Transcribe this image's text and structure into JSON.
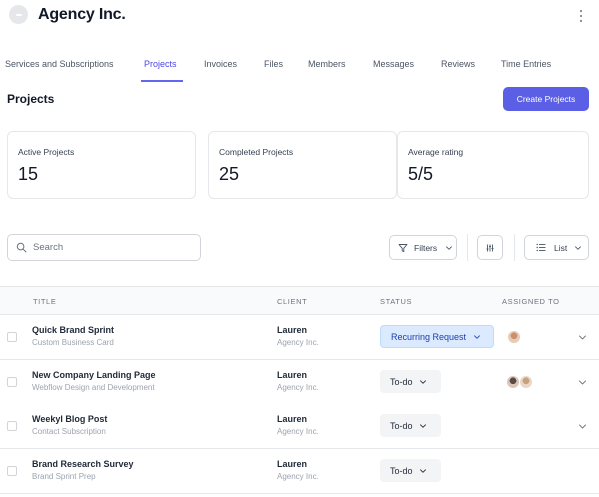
{
  "header": {
    "title": "Agency Inc.",
    "logo_icon": "agency-logo",
    "menu_icon": "kebab-menu-icon"
  },
  "tabs": [
    {
      "label": "Services and Subscriptions",
      "active": false
    },
    {
      "label": "Projects",
      "active": true
    },
    {
      "label": "Invoices",
      "active": false
    },
    {
      "label": "Files",
      "active": false
    },
    {
      "label": "Members",
      "active": false
    },
    {
      "label": "Messages",
      "active": false
    },
    {
      "label": "Reviews",
      "active": false
    },
    {
      "label": "Time Entries",
      "active": false
    }
  ],
  "section": {
    "title": "Projects",
    "create_label": "Create Projects"
  },
  "stats": [
    {
      "label": "Active Projects",
      "value": "15"
    },
    {
      "label": "Completed Projects",
      "value": "25"
    },
    {
      "label": "Average rating",
      "value": "5/5"
    }
  ],
  "toolbar": {
    "search_placeholder": "Search",
    "search_value": "",
    "filters_label": "Filters",
    "list_label": "List"
  },
  "table": {
    "columns": {
      "title": "TITLE",
      "client": "CLIENT",
      "status": "STATUS",
      "assigned": "ASSIGNED TO"
    },
    "rows": [
      {
        "title": "Quick Brand Sprint",
        "subtitle": "Custom Business Card",
        "client": "Lauren",
        "client_sub": "Agency Inc.",
        "status": "Recurring Request",
        "status_style": "recurring",
        "assignees": 1,
        "expandable": true
      },
      {
        "title": "New Company Landing Page",
        "subtitle": "Webflow Design and Development",
        "client": "Lauren",
        "client_sub": "Agency Inc.",
        "status": "To-do",
        "status_style": "todo",
        "assignees": 2,
        "expandable": true
      },
      {
        "title": "Weekyl Blog Post",
        "subtitle": "Contact Subscription",
        "client": "Lauren",
        "client_sub": "Agency Inc.",
        "status": "To-do",
        "status_style": "todo",
        "assignees": 0,
        "expandable": true
      },
      {
        "title": "Brand Research Survey",
        "subtitle": "Brand Sprint Prep",
        "client": "Lauren",
        "client_sub": "Agency Inc.",
        "status": "To-do",
        "status_style": "todo",
        "assignees": 0,
        "expandable": false
      }
    ]
  },
  "colors": {
    "accent": "#5b5fe6",
    "tab_active": "#4f46e5",
    "recurring_bg": "#dbeafe",
    "recurring_text": "#1e40af",
    "todo_bg": "#f3f4f6"
  }
}
